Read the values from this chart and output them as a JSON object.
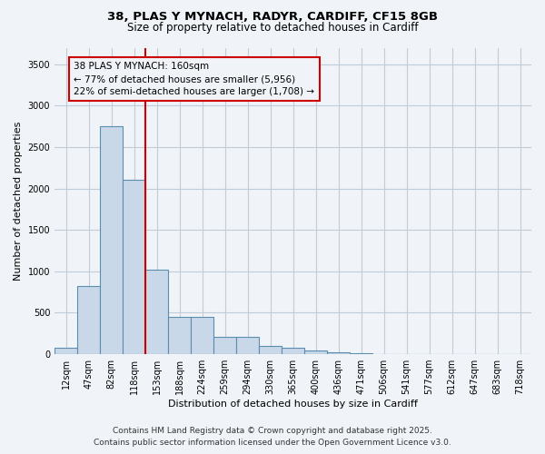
{
  "title_line1": "38, PLAS Y MYNACH, RADYR, CARDIFF, CF15 8GB",
  "title_line2": "Size of property relative to detached houses in Cardiff",
  "xlabel": "Distribution of detached houses by size in Cardiff",
  "ylabel": "Number of detached properties",
  "categories": [
    "12sqm",
    "47sqm",
    "82sqm",
    "118sqm",
    "153sqm",
    "188sqm",
    "224sqm",
    "259sqm",
    "294sqm",
    "330sqm",
    "365sqm",
    "400sqm",
    "436sqm",
    "471sqm",
    "506sqm",
    "541sqm",
    "577sqm",
    "612sqm",
    "647sqm",
    "683sqm",
    "718sqm"
  ],
  "values": [
    75,
    825,
    2750,
    2100,
    1025,
    450,
    450,
    210,
    210,
    100,
    75,
    50,
    20,
    10,
    5,
    3,
    2,
    1,
    1,
    0,
    0
  ],
  "bar_color": "#c8d8e8",
  "bar_edge_color": "#5b8db0",
  "bar_edge_width": 0.8,
  "grid_color": "#c0ccd8",
  "background_color": "#f0f4f8",
  "property_line_color": "#cc0000",
  "annotation_text": "38 PLAS Y MYNACH: 160sqm\n← 77% of detached houses are smaller (5,956)\n22% of semi-detached houses are larger (1,708) →",
  "annotation_box_color": "#cc0000",
  "ylim": [
    0,
    3700
  ],
  "yticks": [
    0,
    500,
    1000,
    1500,
    2000,
    2500,
    3000,
    3500
  ],
  "footer_line1": "Contains HM Land Registry data © Crown copyright and database right 2025.",
  "footer_line2": "Contains public sector information licensed under the Open Government Licence v3.0.",
  "title_fontsize": 9.5,
  "subtitle_fontsize": 8.5,
  "axis_label_fontsize": 8,
  "tick_fontsize": 7,
  "annotation_fontsize": 7.5,
  "footer_fontsize": 6.5
}
